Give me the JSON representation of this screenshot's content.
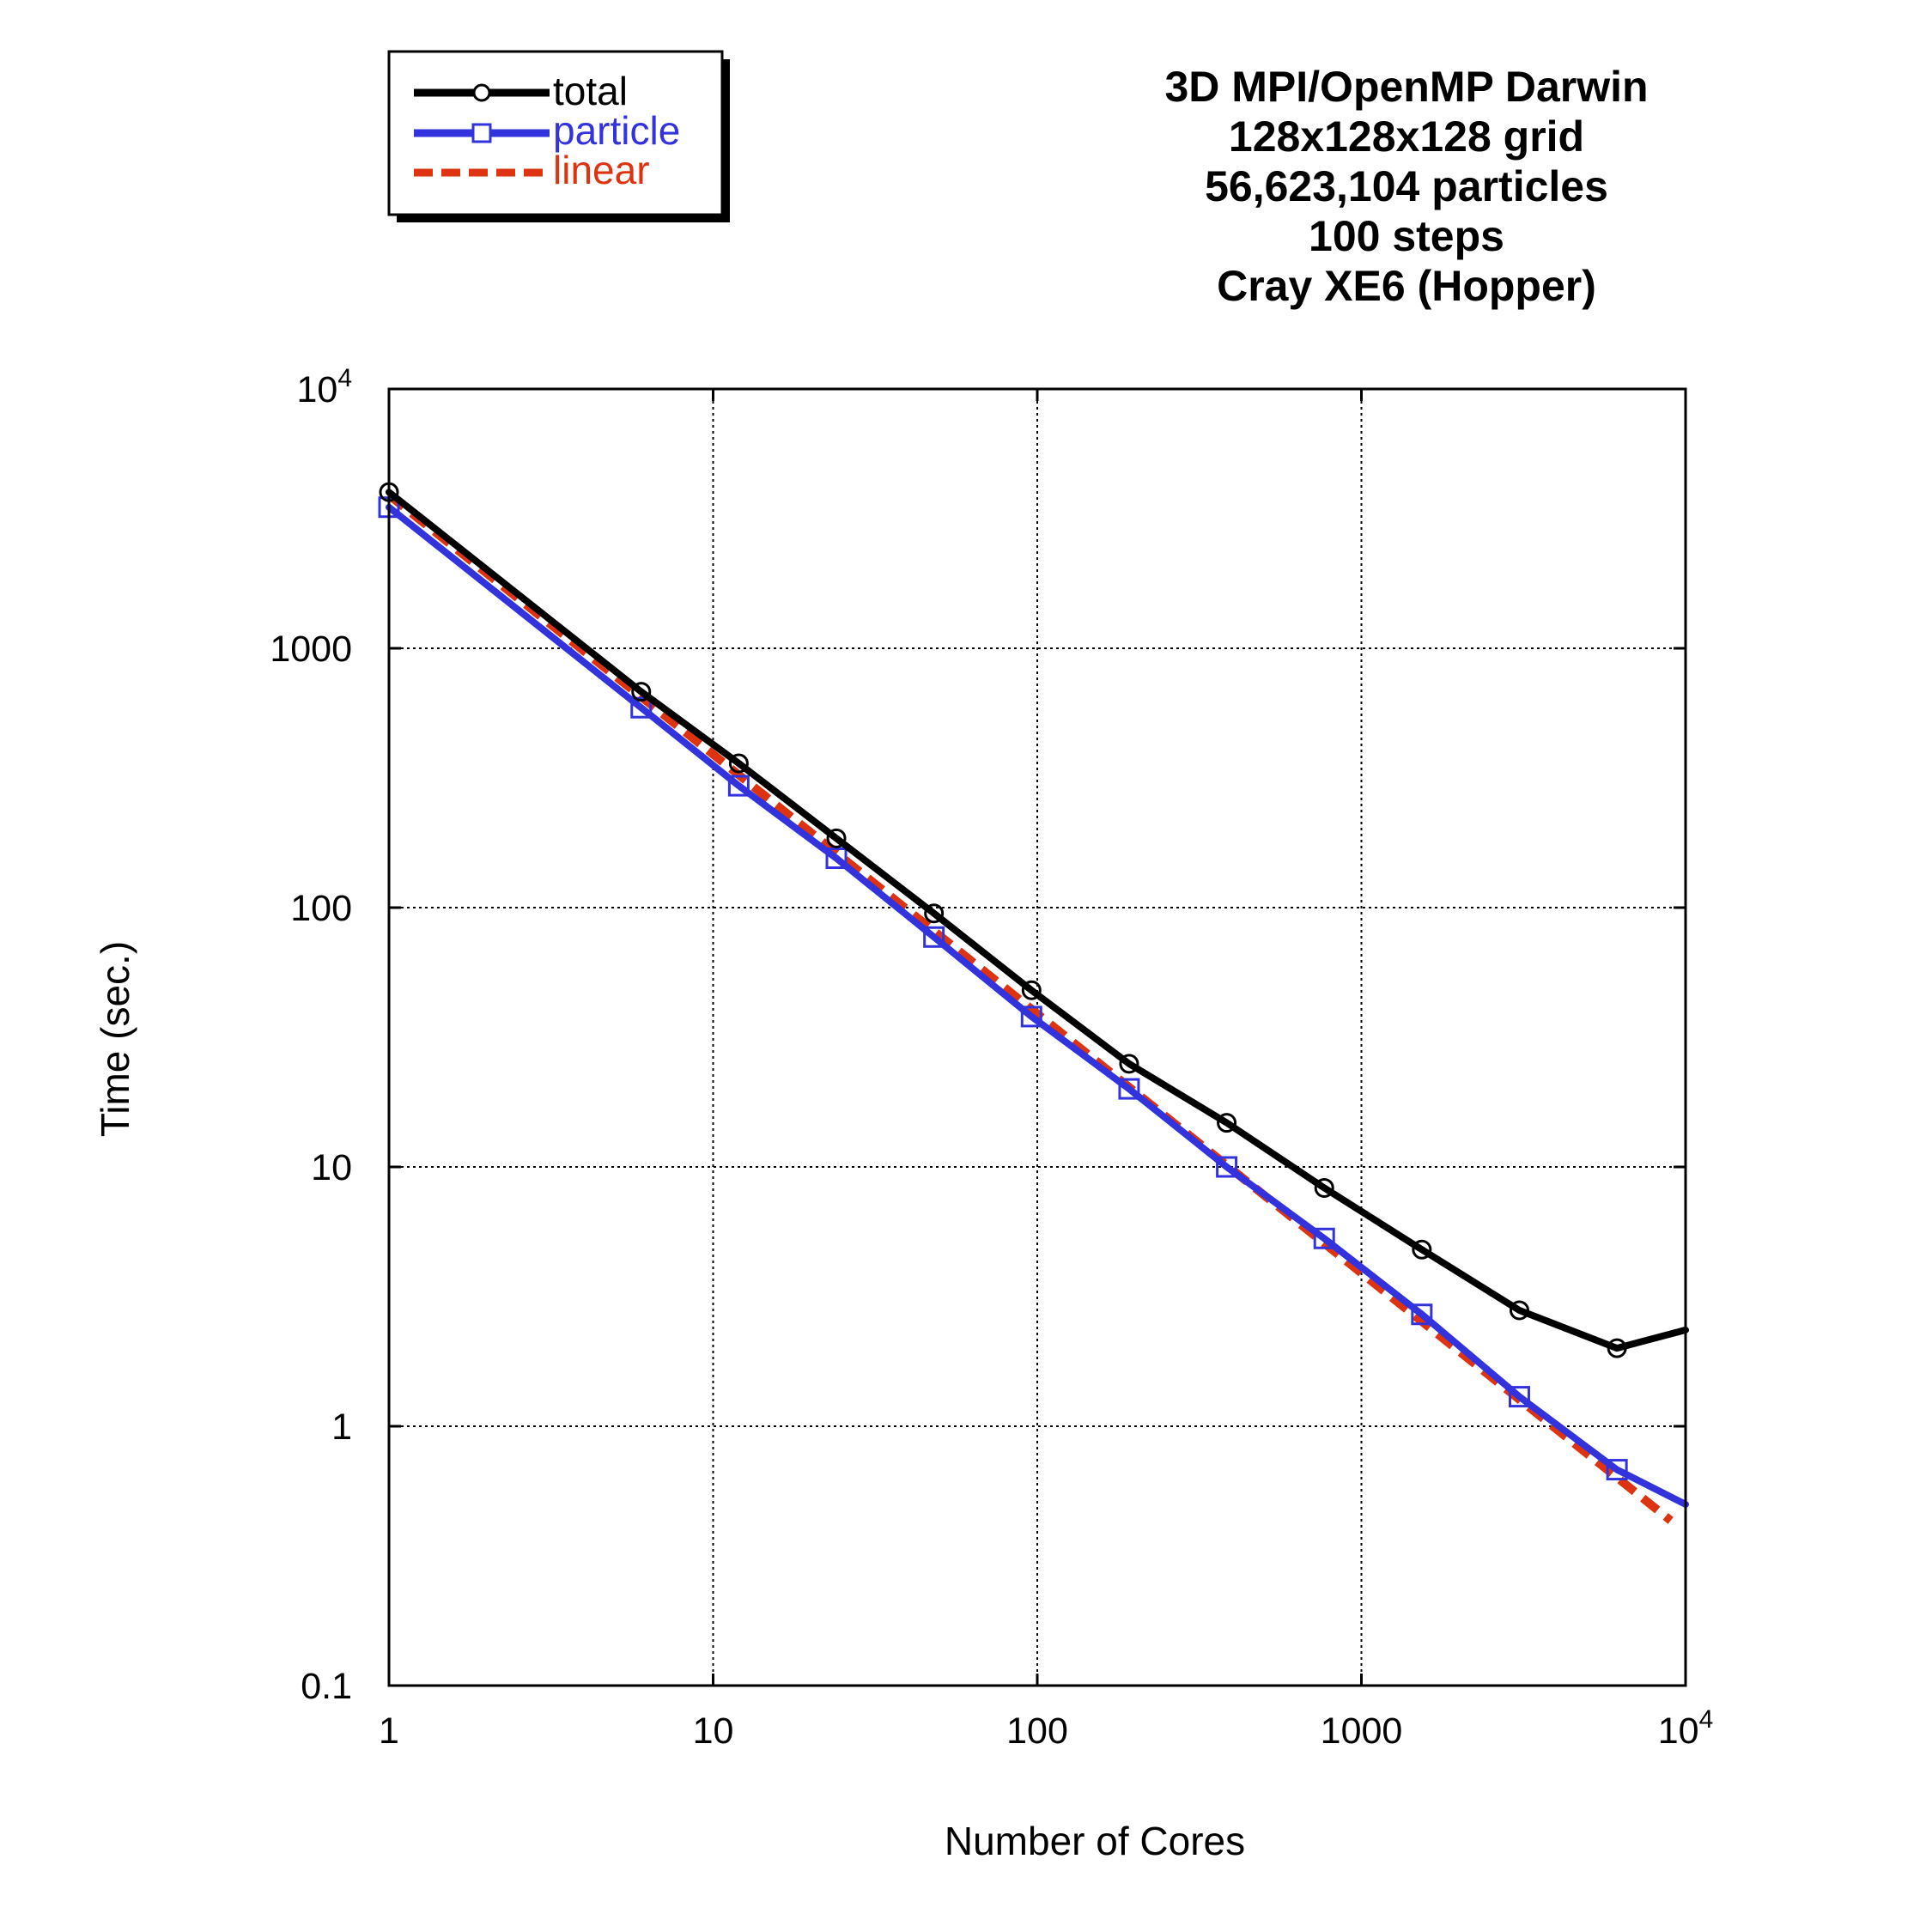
{
  "chart_data": {
    "type": "line",
    "title_lines": [
      "3D MPI/OpenMP Darwin",
      "128x128x128 grid",
      "56,623,104 particles",
      "100 steps",
      "Cray XE6 (Hopper)"
    ],
    "xlabel": "Number of Cores",
    "ylabel": "Time (sec.)",
    "x_scale": "log",
    "y_scale": "log",
    "xlim": [
      1,
      10000
    ],
    "ylim": [
      0.1,
      10000
    ],
    "x_ticks": [
      {
        "value": 1,
        "label": "1"
      },
      {
        "value": 10,
        "label": "10"
      },
      {
        "value": 100,
        "label": "100"
      },
      {
        "value": 1000,
        "label": "1000"
      },
      {
        "value": 10000,
        "label": "10",
        "exp": "4"
      }
    ],
    "y_ticks": [
      {
        "value": 0.1,
        "label": "0.1"
      },
      {
        "value": 1,
        "label": "1"
      },
      {
        "value": 10,
        "label": "10"
      },
      {
        "value": 100,
        "label": "100"
      },
      {
        "value": 1000,
        "label": "1000"
      },
      {
        "value": 10000,
        "label": "10",
        "exp": "4"
      }
    ],
    "grid": true,
    "legend_position": "top-left",
    "series": [
      {
        "name": "total",
        "color": "#000000",
        "dashed": false,
        "marker": "circle",
        "x": [
          1,
          6,
          12,
          24,
          48,
          96,
          192,
          384,
          768,
          1536,
          3072,
          6144,
          10000
        ],
        "y": [
          4000,
          680,
          360,
          185,
          95,
          48,
          25,
          14.8,
          8.3,
          4.8,
          2.8,
          2.0,
          2.35
        ]
      },
      {
        "name": "particle",
        "color": "#3333dd",
        "dashed": false,
        "marker": "square",
        "x": [
          1,
          6,
          12,
          24,
          48,
          96,
          192,
          384,
          768,
          1536,
          3072,
          6144,
          10000
        ],
        "y": [
          3500,
          590,
          295,
          155,
          77,
          38,
          20,
          10,
          5.3,
          2.7,
          1.3,
          0.68,
          0.5
        ]
      },
      {
        "name": "linear",
        "color": "#dd3311",
        "dashed": true,
        "marker": "none",
        "x": [
          1,
          9000
        ],
        "y": [
          3900,
          0.433
        ]
      }
    ]
  }
}
